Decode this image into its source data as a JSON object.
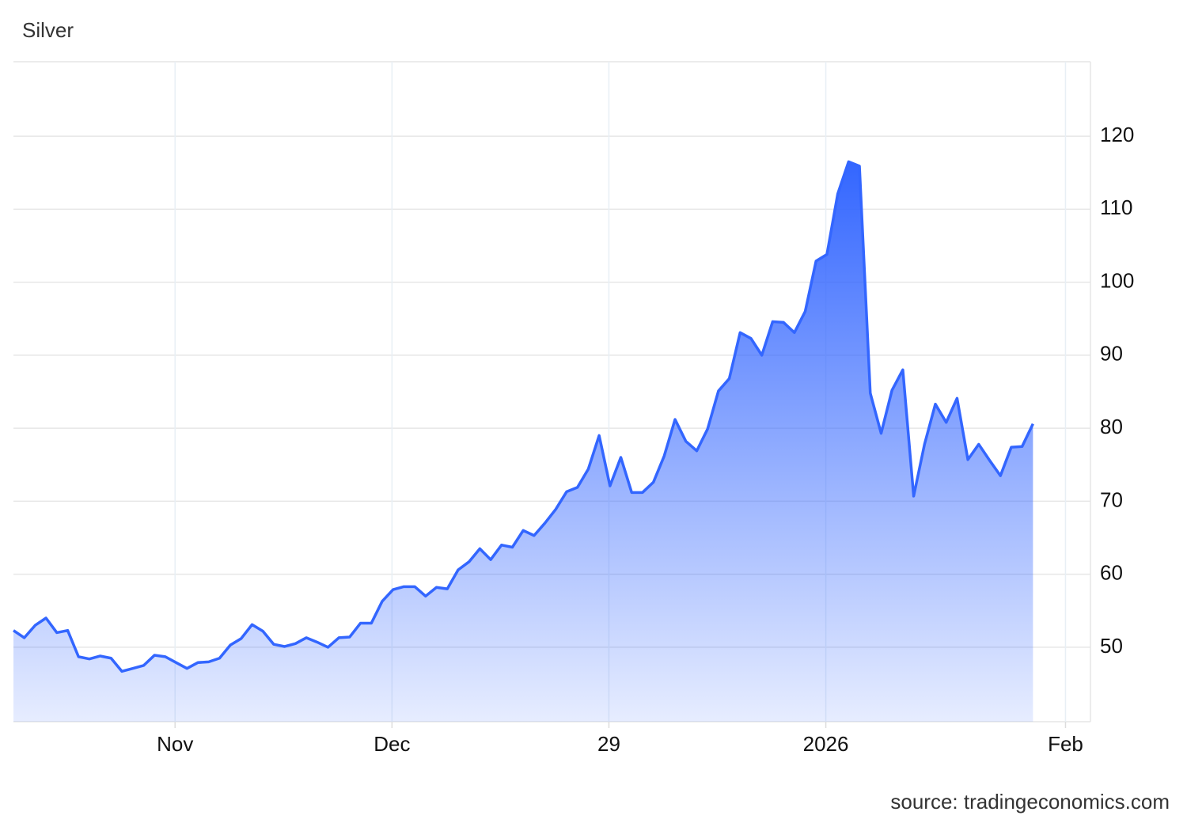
{
  "chart_data": {
    "type": "area",
    "title": "Silver",
    "source": "source: tradingeconomics.com",
    "x": [
      0,
      1,
      2,
      3,
      4,
      5,
      6,
      7,
      8,
      9,
      10,
      11,
      12,
      13,
      14,
      15,
      16,
      17,
      18,
      19,
      20,
      21,
      22,
      23,
      24,
      25,
      26,
      27,
      28,
      29,
      30,
      31,
      32,
      33,
      34,
      35,
      36,
      37,
      38,
      39,
      40,
      41,
      42,
      43,
      44,
      45,
      46,
      47,
      48,
      49,
      50,
      51,
      52,
      53,
      54,
      55,
      56,
      57,
      58,
      59,
      60,
      61,
      62,
      63,
      64,
      65,
      66,
      67,
      68,
      69,
      70,
      71,
      72,
      73,
      74,
      75,
      76,
      77,
      78,
      79,
      80,
      81,
      82,
      83,
      84,
      85,
      86,
      87,
      88,
      89,
      90,
      91,
      92,
      93,
      94
    ],
    "values": [
      52.3,
      51.3,
      53.0,
      54.0,
      52.0,
      52.3,
      48.7,
      48.4,
      48.8,
      48.5,
      46.7,
      47.1,
      47.5,
      48.9,
      48.7,
      47.9,
      47.1,
      47.9,
      48.0,
      48.5,
      50.3,
      51.2,
      53.1,
      52.2,
      50.4,
      50.1,
      50.5,
      51.3,
      50.7,
      50.0,
      51.3,
      51.4,
      53.3,
      53.3,
      56.3,
      57.9,
      58.3,
      58.3,
      57.0,
      58.2,
      58.0,
      60.6,
      61.7,
      63.5,
      62.0,
      64.0,
      63.7,
      66.0,
      65.3,
      67.0,
      68.9,
      71.3,
      71.9,
      74.4,
      79.0,
      72.1,
      76.0,
      71.2,
      71.2,
      72.6,
      76.2,
      81.2,
      78.2,
      76.9,
      79.9,
      85.1,
      86.8,
      93.1,
      92.3,
      90.0,
      94.6,
      94.5,
      93.1,
      96.0,
      102.9,
      103.8,
      112.1,
      116.5,
      115.9,
      84.8,
      79.3,
      85.2,
      88.0,
      70.7,
      77.8,
      83.3,
      80.8,
      84.1,
      75.7,
      77.8,
      75.6,
      73.5,
      77.4,
      77.5,
      80.6
    ],
    "color": "#3366ff",
    "xlim": [
      0,
      99.3
    ],
    "xticks": [
      {
        "value": 14.9,
        "label": "Nov"
      },
      {
        "value": 34.9,
        "label": "Dec"
      },
      {
        "value": 54.9,
        "label": "29"
      },
      {
        "value": 74.9,
        "label": "2026"
      },
      {
        "value": 97.0,
        "label": "Feb"
      }
    ],
    "ylim": [
      39.8,
      130.2
    ],
    "yticks": [
      50,
      60,
      70,
      80,
      90,
      100,
      110,
      120
    ],
    "grid": true
  }
}
